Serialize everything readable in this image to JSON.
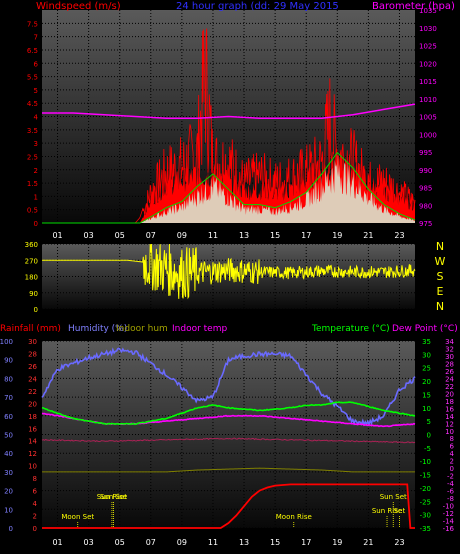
{
  "header": {
    "windspeed_title": "Windspeed (m/s)",
    "graph_title": "24 hour graph (dd: 29 May 2015",
    "barometer_title": "Barometer (hpa)",
    "compass": [
      "N",
      "W",
      "S",
      "E",
      "N"
    ],
    "rainfall_title": "Rainfall (mm)",
    "humidity_title": "Humidity (%)",
    "indoor_hum_title": "Indoor hum",
    "indoor_temp_title": "Indoor temp",
    "temperature_title": "Temperature (°C)",
    "dewpoint_title": "Dew Point (°C)"
  },
  "colors": {
    "background": "#000000",
    "panel_top": "#5a5a5a",
    "panel_bottom": "#080808",
    "windspeed": "#ff0000",
    "gust": "#ff0000",
    "avg_wind": "#00cc00",
    "barometer": "#ff00ff",
    "direction": "#ffff00",
    "humidity": "#6a6aff",
    "temperature": "#00ff00",
    "dewpoint": "#ff00ff",
    "indoor_temp": "#aa2255",
    "indoor_hum": "#808000",
    "rainfall": "#ff0000",
    "sun_moon": "#ffff00"
  },
  "hours": [
    "01",
    "03",
    "05",
    "07",
    "09",
    "11",
    "13",
    "15",
    "17",
    "19",
    "21",
    "23"
  ],
  "chart_data": [
    {
      "type": "line",
      "name": "wind-barometer",
      "x_label": "hour",
      "y_label": "Windspeed (m/s)",
      "y2_label": "Barometer (hpa)",
      "ylim": [
        0,
        8
      ],
      "y_ticks": [
        "0",
        "0.5",
        "1",
        "1.5",
        "2",
        "2.5",
        "3",
        "3.5",
        "4",
        "4.5",
        "5",
        "5.5",
        "6",
        "6.5",
        "7",
        "7.5"
      ],
      "y2lim": [
        975,
        1035
      ],
      "y2_ticks": [
        "975",
        "980",
        "985",
        "990",
        "995",
        "1000",
        "1005",
        "1010",
        "1015",
        "1020",
        "1025",
        "1030",
        "1035"
      ],
      "grid": true,
      "series": [
        {
          "key": "gust",
          "axis": "left",
          "x": [
            0,
            6,
            6.3,
            7,
            8,
            9,
            10,
            10.5,
            11,
            12,
            13,
            14,
            15,
            16,
            17,
            18,
            18.5,
            19,
            20,
            21,
            22,
            23,
            24
          ],
          "y": [
            0,
            0,
            0.2,
            1.5,
            2.5,
            2.8,
            3.5,
            7.5,
            3,
            3,
            2,
            2.3,
            2,
            2.2,
            2.5,
            3,
            5,
            3.5,
            3,
            2,
            2,
            1.5,
            1
          ]
        },
        {
          "key": "wind",
          "axis": "left",
          "x": [
            0,
            6.3,
            7,
            8,
            9,
            10,
            11,
            12,
            13,
            14,
            15,
            16,
            17,
            18,
            19,
            20,
            21,
            22,
            23,
            24
          ],
          "y": [
            0,
            0,
            0.8,
            1.4,
            1.6,
            1.8,
            1.8,
            1.5,
            1.2,
            1.2,
            1.1,
            1.2,
            1.6,
            2,
            2.2,
            2,
            1.5,
            1.2,
            0.9,
            0.6
          ]
        },
        {
          "key": "avg_wind",
          "axis": "left",
          "x": [
            0,
            6.3,
            7,
            8,
            9,
            10,
            11,
            12,
            13,
            14,
            15,
            16,
            17,
            18,
            19,
            20,
            21,
            22,
            23,
            24
          ],
          "y": [
            0,
            0,
            0.2,
            0.5,
            0.7,
            1.2,
            1.6,
            1.1,
            0.6,
            0.6,
            0.5,
            0.7,
            1,
            1.6,
            2.3,
            1.8,
            1.1,
            0.6,
            0.3,
            0.1
          ]
        },
        {
          "key": "barometer",
          "axis": "right",
          "x": [
            0,
            2,
            4,
            6,
            8,
            10,
            12,
            14,
            16,
            18,
            20,
            22,
            24
          ],
          "y": [
            1006,
            1006,
            1005.5,
            1005,
            1004.5,
            1004.5,
            1005,
            1004.5,
            1004.5,
            1004.5,
            1005.5,
            1007,
            1008.5
          ]
        }
      ]
    },
    {
      "type": "line",
      "name": "wind-direction",
      "ylim": [
        0,
        360
      ],
      "y_ticks": [
        "0",
        "90",
        "180",
        "270",
        "360"
      ],
      "series": [
        {
          "key": "direction",
          "x": [
            0,
            4,
            5.5,
            6.5,
            7,
            8,
            9,
            10,
            12,
            14,
            16,
            18,
            20,
            22,
            24
          ],
          "y": [
            270,
            270,
            270,
            260,
            250,
            220,
            200,
            200,
            215,
            205,
            200,
            210,
            205,
            205,
            215
          ]
        }
      ]
    },
    {
      "type": "line",
      "name": "temperature-humidity-rain",
      "y_left_ticks": [
        "0",
        "10",
        "20",
        "30",
        "40",
        "50",
        "60",
        "70",
        "80",
        "90",
        "100"
      ],
      "rain_ticks": [
        "0",
        "2",
        "4",
        "6",
        "8",
        "10",
        "12",
        "14",
        "16",
        "18",
        "20",
        "22",
        "24",
        "26",
        "28",
        "30"
      ],
      "temp_ticks": [
        "-35",
        "-30",
        "-25",
        "-20",
        "-15",
        "-10",
        "-5",
        "0",
        "5",
        "10",
        "15",
        "20",
        "25",
        "30",
        "35"
      ],
      "dew_ticks": [
        "-16",
        "-14",
        "-12",
        "-10",
        "-8",
        "-6",
        "-4",
        "-2",
        "0",
        "2",
        "4",
        "6",
        "8",
        "10",
        "12",
        "14",
        "16",
        "18",
        "20",
        "22",
        "24",
        "26",
        "28",
        "30",
        "32",
        "34"
      ],
      "series": [
        {
          "key": "humidity",
          "x": [
            0,
            1,
            2,
            3,
            4,
            5,
            6,
            7,
            8,
            9,
            10,
            11,
            12,
            13,
            14,
            15,
            16,
            17,
            18,
            19,
            20,
            21,
            22,
            23,
            24
          ],
          "y": [
            70,
            85,
            88,
            91,
            93,
            95,
            94,
            88,
            82,
            75,
            68,
            70,
            90,
            92,
            93,
            93,
            92,
            82,
            72,
            65,
            57,
            56,
            60,
            74,
            80
          ]
        },
        {
          "key": "temperature",
          "x": [
            0,
            2,
            4,
            6,
            8,
            10,
            11,
            12,
            14,
            16,
            17,
            18,
            19,
            20,
            22,
            24
          ],
          "y": [
            10,
            6,
            4,
            4,
            6,
            10,
            11,
            10,
            9,
            10,
            11,
            11,
            12,
            12,
            9,
            7
          ]
        },
        {
          "key": "dewpoint",
          "x": [
            0,
            2,
            4,
            6,
            8,
            10,
            12,
            14,
            16,
            18,
            20,
            22,
            24
          ],
          "y": [
            8,
            6,
            4,
            4,
            5,
            6,
            7,
            7,
            6,
            5,
            4,
            3,
            4
          ]
        },
        {
          "key": "indoor_temp",
          "x": [
            0,
            4,
            8,
            12,
            16,
            20,
            24
          ],
          "y": [
            -2,
            -2.5,
            -2,
            -1.5,
            -2,
            -2.5,
            -3
          ]
        },
        {
          "key": "indoor_hum",
          "x": [
            0,
            4,
            8,
            10,
            14,
            18,
            20,
            24
          ],
          "y": [
            30,
            30,
            30,
            31,
            32,
            31,
            30,
            30
          ]
        },
        {
          "key": "rainfall",
          "x": [
            0,
            11.5,
            12,
            12.5,
            13,
            13.5,
            14,
            14.5,
            15,
            16,
            18,
            20,
            22,
            23,
            23.5,
            23.7,
            24
          ],
          "y": [
            0,
            0,
            0.8,
            2,
            3.5,
            5,
            6,
            6.5,
            6.8,
            7,
            7,
            7,
            7,
            7,
            7,
            0,
            0
          ]
        }
      ]
    }
  ],
  "events": [
    {
      "text": "Moon Set",
      "hour": 2.3,
      "row": 1
    },
    {
      "text": "Sun Rise",
      "hour": 4.5,
      "row": 0
    },
    {
      "text": "Sun Set",
      "hour": 4.6,
      "row": 0
    },
    {
      "text": "Moon Rise",
      "hour": 16.2,
      "row": 1
    },
    {
      "text": "Sun Set",
      "hour": 22.6,
      "row": 0
    },
    {
      "text": "Sun Rise",
      "hour": 22.2,
      "row": 2
    },
    {
      "text": "Set",
      "hour": 23.0,
      "row": 2
    }
  ]
}
